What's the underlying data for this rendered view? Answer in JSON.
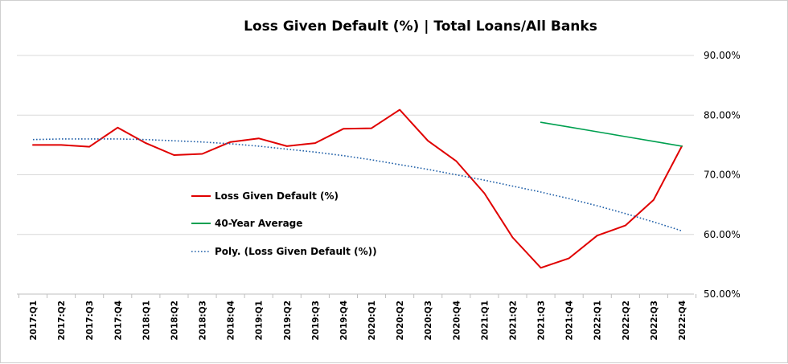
{
  "chart_data": {
    "type": "line",
    "title": "Loss Given Default (%) | Total Loans/All Banks",
    "xlabel": "",
    "ylabel": "",
    "ylim": [
      50,
      90
    ],
    "y_ticks": [
      50,
      60,
      70,
      80,
      90
    ],
    "y_tick_labels": [
      "50.00%",
      "60.00%",
      "70.00%",
      "80.00%",
      "90.00%"
    ],
    "y_axis_side": "right",
    "grid": "horizontal",
    "legend_position": "center-left",
    "categories": [
      "2017:Q1",
      "2017:Q2",
      "2017:Q3",
      "2017:Q4",
      "2018:Q1",
      "2018:Q2",
      "2018:Q3",
      "2018:Q4",
      "2019:Q1",
      "2019:Q2",
      "2019:Q3",
      "2019:Q4",
      "2020:Q1",
      "2020:Q2",
      "2020:Q3",
      "2020:Q4",
      "2021:Q1",
      "2021:Q2",
      "2021:Q3",
      "2021:Q4",
      "2022:Q1",
      "2022:Q2",
      "2022:Q3",
      "2022:Q4"
    ],
    "series": [
      {
        "name": "Loss Given Default (%)",
        "color": "#e00000",
        "style": "solid",
        "values": [
          75.0,
          75.0,
          74.7,
          77.9,
          75.3,
          73.3,
          73.5,
          75.5,
          76.1,
          74.8,
          75.3,
          77.7,
          77.8,
          80.9,
          75.7,
          72.3,
          66.9,
          59.5,
          54.4,
          56.0,
          59.8,
          61.5,
          65.8,
          74.8
        ]
      },
      {
        "name": "40-Year Average",
        "color": "#00a050",
        "style": "solid",
        "values": [
          null,
          null,
          null,
          null,
          null,
          null,
          null,
          null,
          null,
          null,
          null,
          null,
          null,
          null,
          null,
          null,
          null,
          null,
          78.8,
          78.0,
          77.2,
          76.4,
          75.6,
          74.8
        ]
      },
      {
        "name": "Poly. (Loss Given Default (%))",
        "color": "#1f5fa8",
        "style": "dotted",
        "values": [
          75.9,
          76.0,
          76.0,
          76.0,
          75.9,
          75.7,
          75.5,
          75.2,
          74.8,
          74.3,
          73.8,
          73.2,
          72.5,
          71.7,
          70.9,
          70.0,
          69.1,
          68.1,
          67.1,
          66.0,
          64.8,
          63.5,
          62.1,
          60.6
        ]
      }
    ]
  }
}
